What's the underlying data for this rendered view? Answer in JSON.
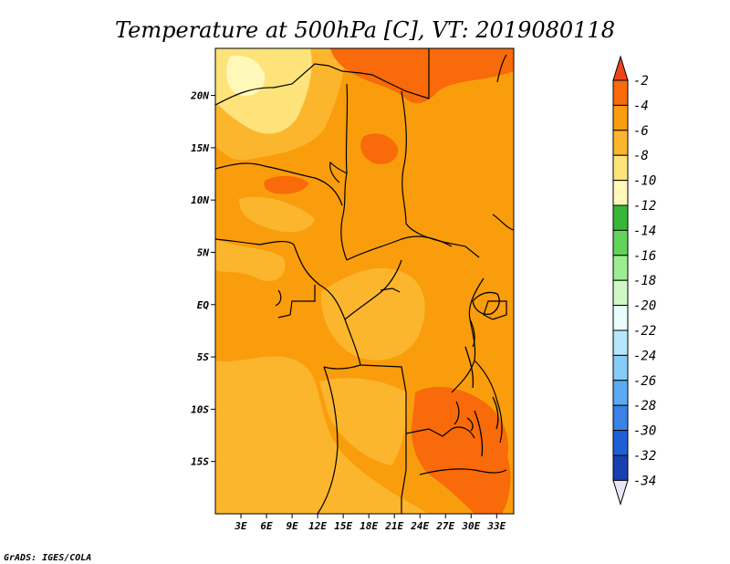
{
  "map": {
    "title": "Temperature at 500hPa [C], VT: 2019080118",
    "credit": "GrADS: IGES/COLA",
    "lat_labels": [
      "20N",
      "15N",
      "10N",
      "5N",
      "EQ",
      "5S",
      "10S",
      "15S"
    ],
    "lat_values": [
      20,
      15,
      10,
      5,
      0,
      -5,
      -10,
      -15
    ],
    "lon_labels": [
      "3E",
      "6E",
      "9E",
      "12E",
      "15E",
      "18E",
      "21E",
      "24E",
      "27E",
      "30E",
      "33E"
    ],
    "lon_values": [
      3,
      6,
      9,
      12,
      15,
      18,
      21,
      24,
      27,
      30,
      33
    ],
    "lat_range": [
      -20,
      24.5
    ],
    "lon_range": [
      0,
      35
    ]
  },
  "colorbar": {
    "labels": [
      "-2",
      "-4",
      "-6",
      "-8",
      "-10",
      "-12",
      "-14",
      "-16",
      "-18",
      "-20",
      "-22",
      "-24",
      "-26",
      "-28",
      "-30",
      "-32",
      "-34"
    ],
    "colors": [
      "#f0441b",
      "#f86a0a",
      "#f99d0c",
      "#fbb62d",
      "#fde37a",
      "#fff8b8",
      "#37b737",
      "#62d45c",
      "#9ded90",
      "#cff8c4",
      "#e8fdfd",
      "#b6e6fb",
      "#86ccf9",
      "#5aabf4",
      "#3a82e7",
      "#1f5fd6",
      "#1840b1",
      "#0c197b",
      "#e6e6f8"
    ]
  },
  "legend_colors": {
    "deep_orange": "#f86a0a",
    "orange": "#f99d0c",
    "light_orange": "#fbb62d",
    "yellow": "#fde37a",
    "pale_yellow": "#fff8b8"
  }
}
